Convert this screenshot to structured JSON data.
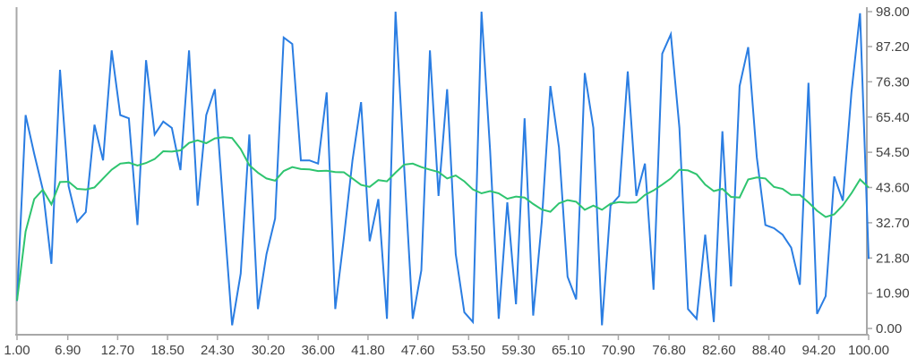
{
  "chart_data": {
    "type": "line",
    "title": "",
    "xlabel": "",
    "ylabel": "",
    "grid": false,
    "legend_position": "none",
    "xlim": [
      1,
      100
    ],
    "ylim": [
      0,
      98
    ],
    "x_ticks": [
      {
        "value": 1.0,
        "label": "1.00"
      },
      {
        "value": 6.9,
        "label": "6.90"
      },
      {
        "value": 12.7,
        "label": "12.70"
      },
      {
        "value": 18.5,
        "label": "18.50"
      },
      {
        "value": 24.3,
        "label": "24.30"
      },
      {
        "value": 30.2,
        "label": "30.20"
      },
      {
        "value": 36.0,
        "label": "36.00"
      },
      {
        "value": 41.8,
        "label": "41.80"
      },
      {
        "value": 47.6,
        "label": "47.60"
      },
      {
        "value": 53.5,
        "label": "53.50"
      },
      {
        "value": 59.3,
        "label": "59.30"
      },
      {
        "value": 65.1,
        "label": "65.10"
      },
      {
        "value": 70.9,
        "label": "70.90"
      },
      {
        "value": 76.8,
        "label": "76.80"
      },
      {
        "value": 82.6,
        "label": "82.60"
      },
      {
        "value": 88.4,
        "label": "88.40"
      },
      {
        "value": 94.2,
        "label": "94.20"
      },
      {
        "value": 100.0,
        "label": "100.00"
      }
    ],
    "y_ticks": [
      {
        "value": 0.0,
        "label": "0.00"
      },
      {
        "value": 10.9,
        "label": "10.90"
      },
      {
        "value": 21.8,
        "label": "21.80"
      },
      {
        "value": 32.7,
        "label": "32.70"
      },
      {
        "value": 43.6,
        "label": "43.60"
      },
      {
        "value": 54.5,
        "label": "54.50"
      },
      {
        "value": 65.4,
        "label": "65.40"
      },
      {
        "value": 76.3,
        "label": "76.30"
      },
      {
        "value": 87.2,
        "label": "87.20"
      },
      {
        "value": 98.0,
        "label": "98.00"
      }
    ],
    "colors": {
      "raw_series": "#2a7de2",
      "average_series": "#2ec46f",
      "axis_line": "#a8a8a8",
      "tick_mark": "#a8a8a8",
      "tick_text": "#424242",
      "background": "#ffffff"
    },
    "series": [
      {
        "name": "raw",
        "color_key": "raw_series",
        "x_start": 1,
        "x_step": 1,
        "values": [
          8.5,
          66,
          54,
          43,
          20,
          80,
          44,
          33,
          36,
          63,
          52,
          86,
          66,
          65,
          32,
          83,
          60,
          64,
          62,
          49,
          86,
          38,
          66,
          74,
          37,
          1,
          17,
          60,
          6,
          23,
          34,
          90,
          88,
          52,
          52,
          51,
          73,
          6,
          28,
          52,
          70,
          27,
          40,
          3,
          98,
          50,
          3,
          18,
          86,
          41,
          74,
          23,
          5,
          2,
          98,
          55,
          3,
          39,
          7.5,
          65,
          4,
          33,
          75,
          56,
          16,
          9,
          79,
          62,
          1,
          38,
          41,
          79.5,
          41,
          51,
          12,
          85,
          91,
          62,
          6,
          3,
          29,
          2,
          61,
          13,
          75,
          87,
          53,
          32,
          31,
          29,
          25,
          13.5,
          76,
          4.5,
          10,
          47,
          39.5,
          73,
          97.5,
          21.5
        ]
      },
      {
        "name": "moving-average",
        "color_key": "average_series",
        "x_start": 1,
        "x_step": 1,
        "values": [
          8.6,
          30,
          40,
          42.9,
          38.4,
          45.3,
          45.4,
          43.2,
          43,
          43.6,
          46.4,
          49.1,
          51,
          51.3,
          50.4,
          51.2,
          52.4,
          54.8,
          54.7,
          55.1,
          57.4,
          58.2,
          57.3,
          58.8,
          59.2,
          58.9,
          55.5,
          50.5,
          48.2,
          46.4,
          45.7,
          48.7,
          49.9,
          49.3,
          49.2,
          48.7,
          48.8,
          48.4,
          48.3,
          46.4,
          44.4,
          43.8,
          45.9,
          45.5,
          48.2,
          50.7,
          51,
          49.9,
          49.1,
          48.4,
          46.4,
          47.3,
          45.5,
          43,
          41.8,
          42.5,
          41.8,
          40.1,
          40.8,
          40.5,
          38.5,
          36.8,
          36.1,
          38.7,
          39.7,
          39.2,
          36.7,
          38,
          36.7,
          38.6,
          39.1,
          38.9,
          39,
          41.3,
          42.7,
          44.5,
          46.4,
          49.1,
          48.9,
          47.7,
          44.5,
          42.5,
          43.2,
          40.7,
          40.5,
          46.1,
          46.7,
          46.4,
          43.8,
          43.2,
          41.3,
          41.3,
          39,
          36.4,
          34.5,
          35.3,
          38.1,
          41.8,
          46.1,
          43.6
        ]
      }
    ]
  }
}
